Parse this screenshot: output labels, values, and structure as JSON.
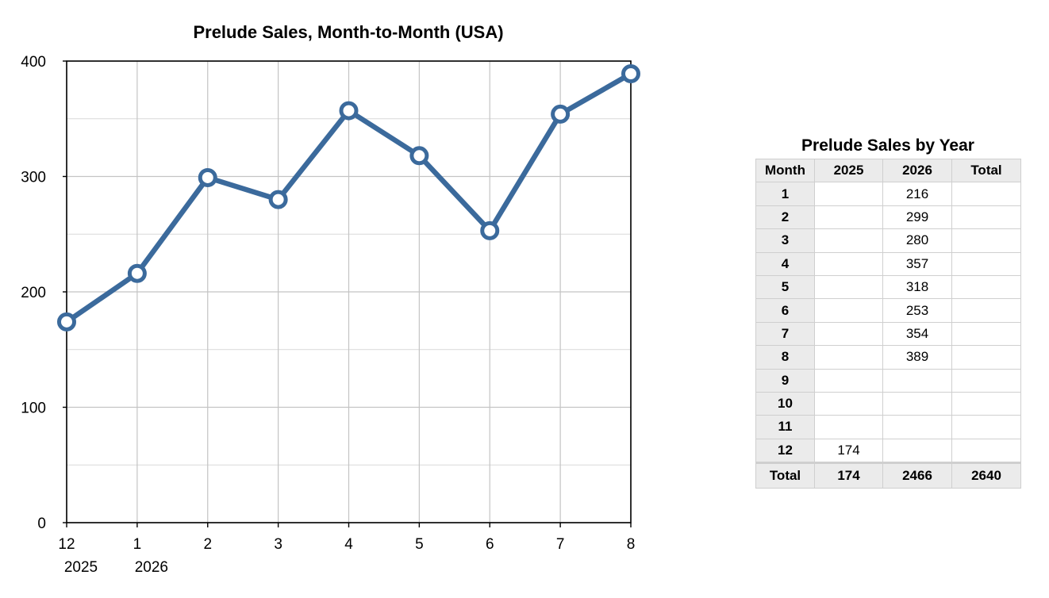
{
  "chart_data": {
    "type": "line",
    "title": "Prelude Sales, Month-to-Month (USA)",
    "xlabel": "",
    "ylabel": "",
    "categories": [
      "12",
      "1",
      "2",
      "3",
      "4",
      "5",
      "6",
      "7",
      "8"
    ],
    "year_labels": [
      {
        "category_index": 0,
        "label": "2025"
      },
      {
        "category_index": 1,
        "label": "2026"
      }
    ],
    "series": [
      {
        "values": [
          174,
          216,
          299,
          280,
          357,
          318,
          253,
          354,
          389
        ]
      }
    ],
    "ylim": [
      0,
      400
    ],
    "yticks": [
      0,
      100,
      200,
      300,
      400
    ],
    "grid": true,
    "line_color": "#3b6a9c",
    "marker_fill": "#ffffff"
  },
  "table": {
    "title": "Prelude Sales by Year",
    "headers": [
      "Month",
      "2025",
      "2026",
      "Total"
    ],
    "rows": [
      [
        "1",
        "",
        "216",
        ""
      ],
      [
        "2",
        "",
        "299",
        ""
      ],
      [
        "3",
        "",
        "280",
        ""
      ],
      [
        "4",
        "",
        "357",
        ""
      ],
      [
        "5",
        "",
        "318",
        ""
      ],
      [
        "6",
        "",
        "253",
        ""
      ],
      [
        "7",
        "",
        "354",
        ""
      ],
      [
        "8",
        "",
        "389",
        ""
      ],
      [
        "9",
        "",
        "",
        ""
      ],
      [
        "10",
        "",
        "",
        ""
      ],
      [
        "11",
        "",
        "",
        ""
      ],
      [
        "12",
        "174",
        "",
        ""
      ]
    ],
    "total_row": [
      "Total",
      "174",
      "2466",
      "2640"
    ]
  }
}
